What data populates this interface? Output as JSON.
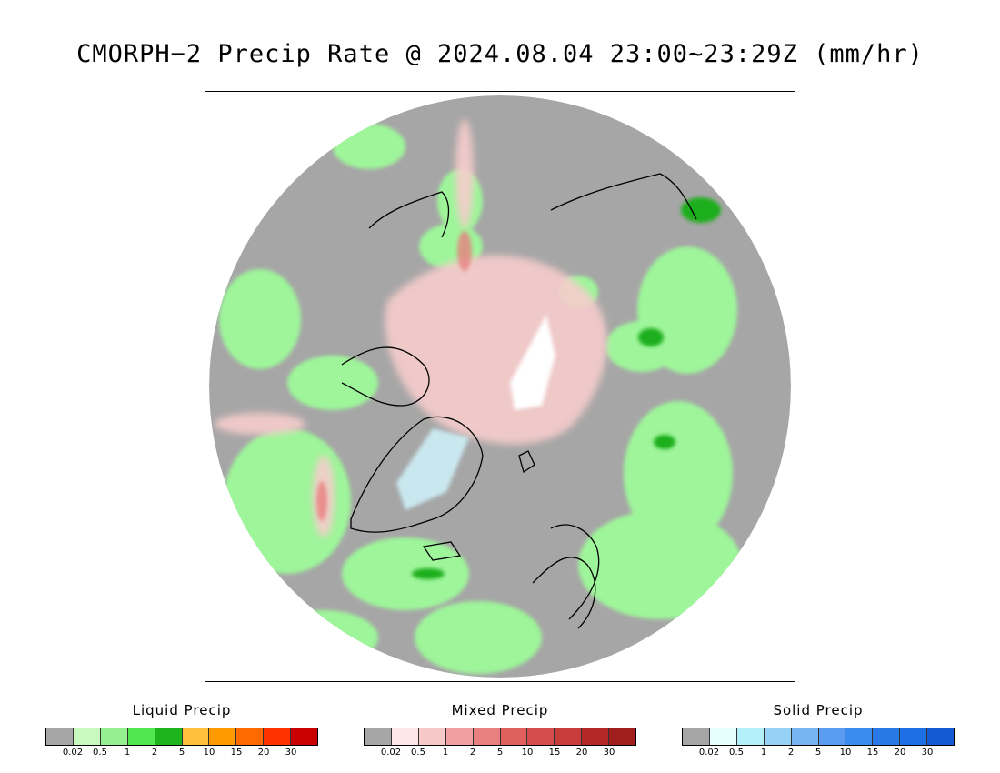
{
  "title": "CMORPH−2 Precip Rate @ 2024.08.04 23:00~23:29Z (mm/hr)",
  "colors": {
    "no_precip": "#a6a6a6",
    "liquid_light": "#9ef59a",
    "liquid_mid": "#52e552",
    "liquid_dark": "#1fae1f",
    "mixed_light": "#f7cccc",
    "solid_light": "#cdeff7",
    "coast": "#000000"
  },
  "legends": [
    {
      "title": "Liquid Precip",
      "colors": [
        "#a6a6a6",
        "#c8fac0",
        "#96f090",
        "#50e650",
        "#1eb41e",
        "#ffbe3c",
        "#ff9a00",
        "#ff6a00",
        "#ff3200",
        "#c80000"
      ],
      "ticks": [
        "0.02",
        "0.5",
        "1",
        "2",
        "5",
        "10",
        "15",
        "20",
        "30"
      ]
    },
    {
      "title": "Mixed Precip",
      "colors": [
        "#a6a6a6",
        "#ffe6e6",
        "#f7c8c8",
        "#f0a0a0",
        "#e88080",
        "#e06060",
        "#d44c4c",
        "#c83c3c",
        "#b42828",
        "#a01e1e"
      ],
      "ticks": [
        "0.02",
        "0.5",
        "1",
        "2",
        "5",
        "10",
        "15",
        "20",
        "30"
      ]
    },
    {
      "title": "Solid Precip",
      "colors": [
        "#a6a6a6",
        "#e6ffff",
        "#b4f0fa",
        "#96d2f5",
        "#78b4f0",
        "#5a9cf0",
        "#3c8cf0",
        "#2878e6",
        "#1e6ee6",
        "#145ad2"
      ],
      "ticks": [
        "0.02",
        "0.5",
        "1",
        "2",
        "5",
        "10",
        "15",
        "20",
        "30"
      ]
    }
  ]
}
